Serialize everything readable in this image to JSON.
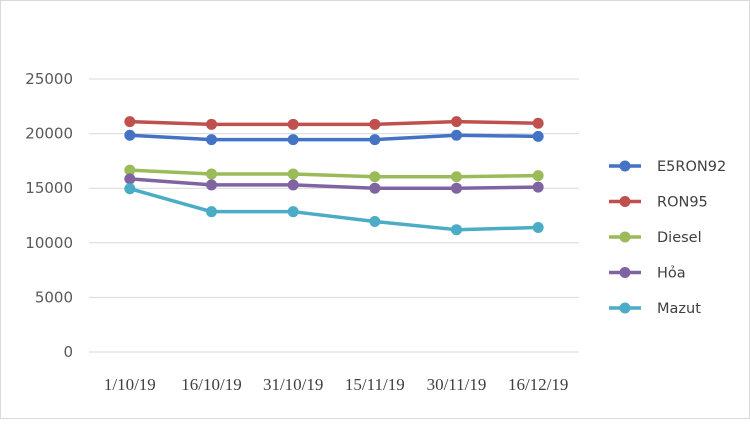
{
  "chart_data": {
    "type": "line",
    "title": "",
    "xlabel": "",
    "ylabel": "",
    "categories": [
      "1/10/19",
      "16/10/19",
      "31/10/19",
      "15/11/19",
      "30/11/19",
      "16/12/19"
    ],
    "ylim": [
      0,
      25000
    ],
    "yticks": [
      0,
      5000,
      10000,
      15000,
      20000,
      25000
    ],
    "grid": true,
    "legend_position": "right",
    "series": [
      {
        "name": "E5RON92",
        "color": "#4472c4",
        "values": [
          19850,
          19450,
          19450,
          19450,
          19850,
          19750
        ]
      },
      {
        "name": "RON95",
        "color": "#c0504d",
        "values": [
          21100,
          20850,
          20850,
          20850,
          21100,
          20950
        ]
      },
      {
        "name": "Diesel",
        "color": "#9bbb59",
        "values": [
          16650,
          16300,
          16300,
          16050,
          16050,
          16150
        ]
      },
      {
        "name": "Hỏa",
        "color": "#8064a2",
        "values": [
          15850,
          15300,
          15300,
          15000,
          15000,
          15100
        ]
      },
      {
        "name": "Mazut",
        "color": "#4bacc6",
        "values": [
          14950,
          12850,
          12850,
          11950,
          11200,
          11400
        ]
      }
    ]
  }
}
